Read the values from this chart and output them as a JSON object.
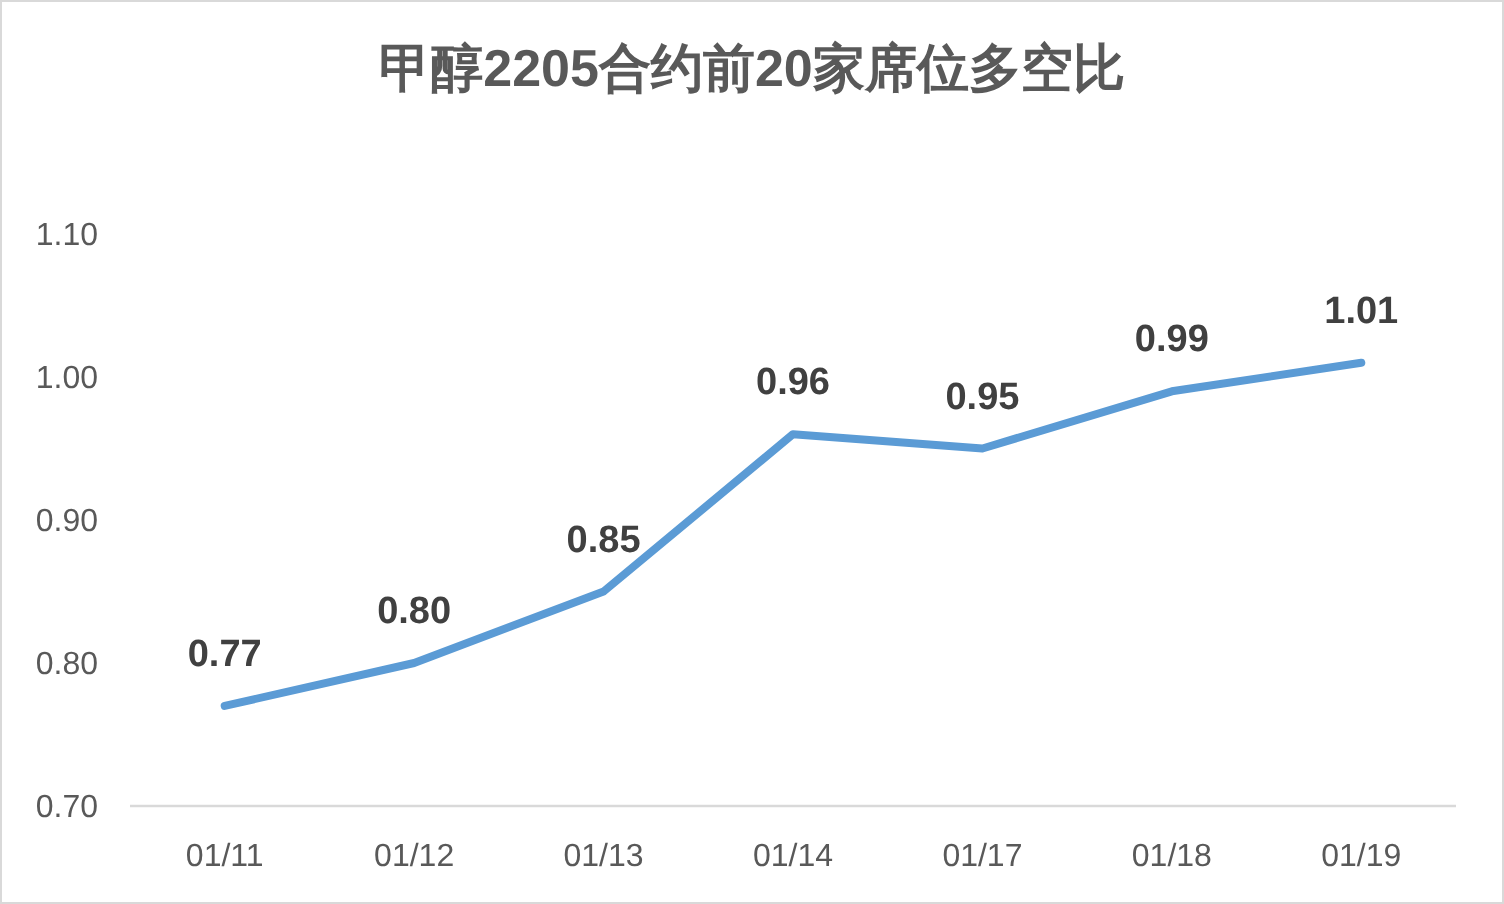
{
  "chart_data": {
    "type": "line",
    "title": "甲醇2205合约前20家席位多空比",
    "categories": [
      "01/11",
      "01/12",
      "01/13",
      "01/14",
      "01/17",
      "01/18",
      "01/19"
    ],
    "series": [
      {
        "color": "#5b9bd5",
        "values": [
          0.77,
          0.8,
          0.85,
          0.96,
          0.95,
          0.99,
          1.01
        ],
        "value_labels": [
          "0.77",
          "0.80",
          "0.85",
          "0.96",
          "0.95",
          "0.99",
          "1.01"
        ]
      }
    ],
    "ylim": [
      0.7,
      1.1
    ],
    "yticks": [
      {
        "value": 0.7,
        "label": "0.70"
      },
      {
        "value": 0.8,
        "label": "0.80"
      },
      {
        "value": 0.9,
        "label": "0.90"
      },
      {
        "value": 1.0,
        "label": "1.00"
      },
      {
        "value": 1.1,
        "label": "1.10"
      }
    ],
    "grid": false,
    "marker": "none",
    "line_style": "solid"
  }
}
